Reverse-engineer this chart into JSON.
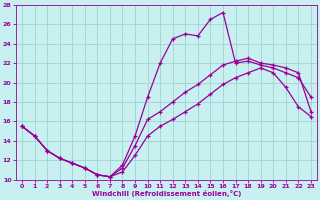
{
  "xlabel": "Windchill (Refroidissement éolien,°C)",
  "bg_color": "#c8f0f0",
  "line_color": "#990099",
  "grid_color": "#99cccc",
  "xlim": [
    -0.5,
    23.5
  ],
  "ylim": [
    10,
    28
  ],
  "yticks": [
    10,
    12,
    14,
    16,
    18,
    20,
    22,
    24,
    26,
    28
  ],
  "xticks": [
    0,
    1,
    2,
    3,
    4,
    5,
    6,
    7,
    8,
    9,
    10,
    11,
    12,
    13,
    14,
    15,
    16,
    17,
    18,
    19,
    20,
    21,
    22,
    23
  ],
  "line1_x": [
    0,
    1,
    2,
    3,
    4,
    5,
    6,
    7,
    8,
    9,
    10,
    11,
    12,
    13,
    14,
    15,
    16,
    17,
    18,
    19,
    20,
    21,
    22,
    23
  ],
  "line1_y": [
    15.5,
    14.5,
    13.0,
    12.2,
    11.7,
    11.2,
    10.5,
    10.3,
    11.5,
    14.5,
    18.5,
    22.0,
    24.5,
    25.0,
    24.8,
    26.5,
    27.2,
    22.0,
    22.2,
    21.8,
    21.5,
    21.0,
    20.5,
    18.5
  ],
  "line2_x": [
    0,
    1,
    2,
    3,
    4,
    5,
    6,
    7,
    8,
    9,
    10,
    11,
    12,
    13,
    14,
    15,
    16,
    17,
    18,
    19,
    20,
    21,
    22,
    23
  ],
  "line2_y": [
    15.5,
    14.5,
    13.0,
    12.2,
    11.7,
    11.2,
    10.5,
    10.3,
    11.2,
    13.5,
    16.2,
    17.0,
    18.0,
    19.0,
    19.8,
    20.8,
    21.8,
    22.2,
    22.5,
    22.0,
    21.8,
    21.5,
    21.0,
    17.0
  ],
  "line3_x": [
    0,
    1,
    2,
    3,
    4,
    5,
    6,
    7,
    8,
    9,
    10,
    11,
    12,
    13,
    14,
    15,
    16,
    17,
    18,
    19,
    20,
    21,
    22,
    23
  ],
  "line3_y": [
    15.5,
    14.5,
    13.0,
    12.2,
    11.7,
    11.2,
    10.5,
    10.3,
    10.8,
    12.5,
    14.5,
    15.5,
    16.2,
    17.0,
    17.8,
    18.8,
    19.8,
    20.5,
    21.0,
    21.5,
    21.0,
    19.5,
    17.5,
    16.5
  ]
}
